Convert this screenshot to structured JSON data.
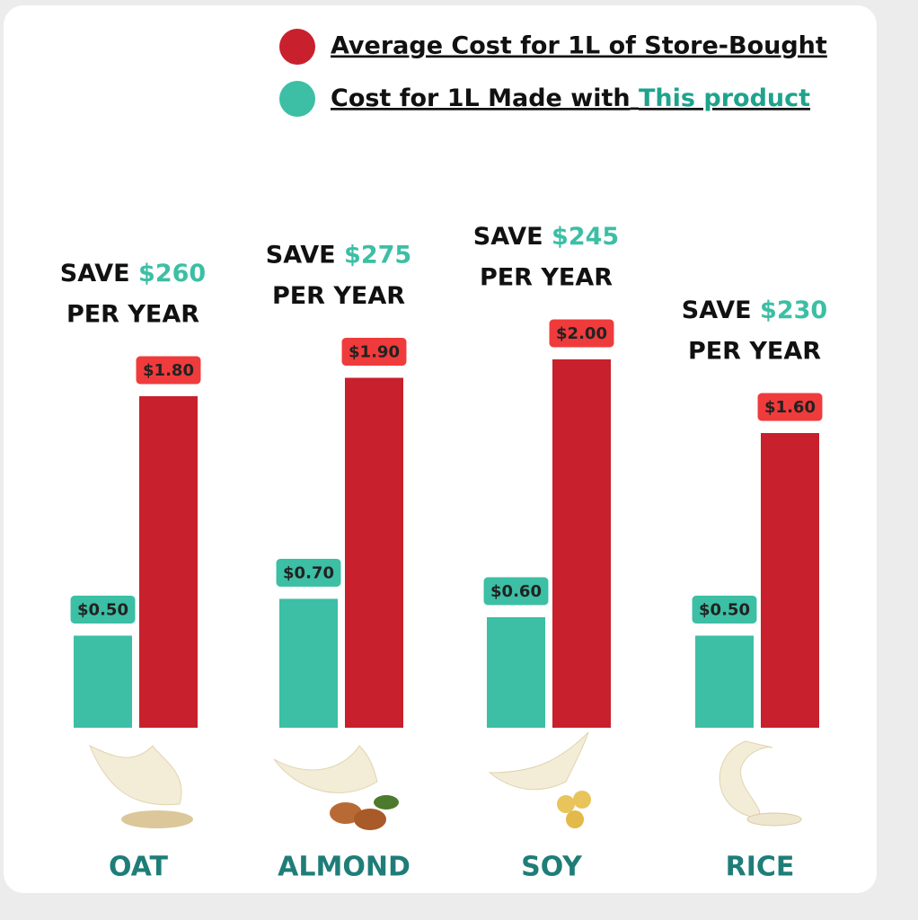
{
  "chart_data": {
    "type": "bar",
    "categories": [
      "OAT",
      "ALMOND",
      "SOY",
      "RICE"
    ],
    "series": [
      {
        "name": "Average Cost for 1L of Store-Bought",
        "color": "#c8202c",
        "values": [
          1.8,
          1.9,
          2.0,
          1.6
        ],
        "value_labels": [
          "$1.80",
          "$1.90",
          "$2.00",
          "$1.60"
        ]
      },
      {
        "name": "Cost for 1L Made with",
        "color": "#3cbfa4",
        "values": [
          0.5,
          0.7,
          0.6,
          0.5
        ],
        "value_labels": [
          "$0.50",
          "$0.70",
          "$0.60",
          "$0.50"
        ]
      }
    ],
    "legend_highlight": "This product",
    "annotations": [
      {
        "prefix": "SAVE",
        "amount": "$260",
        "suffix": "PER YEAR"
      },
      {
        "prefix": "SAVE",
        "amount": "$275",
        "suffix": "PER YEAR"
      },
      {
        "prefix": "SAVE",
        "amount": "$245",
        "suffix": "PER YEAR"
      },
      {
        "prefix": "SAVE",
        "amount": "$230",
        "suffix": "PER YEAR"
      }
    ]
  }
}
